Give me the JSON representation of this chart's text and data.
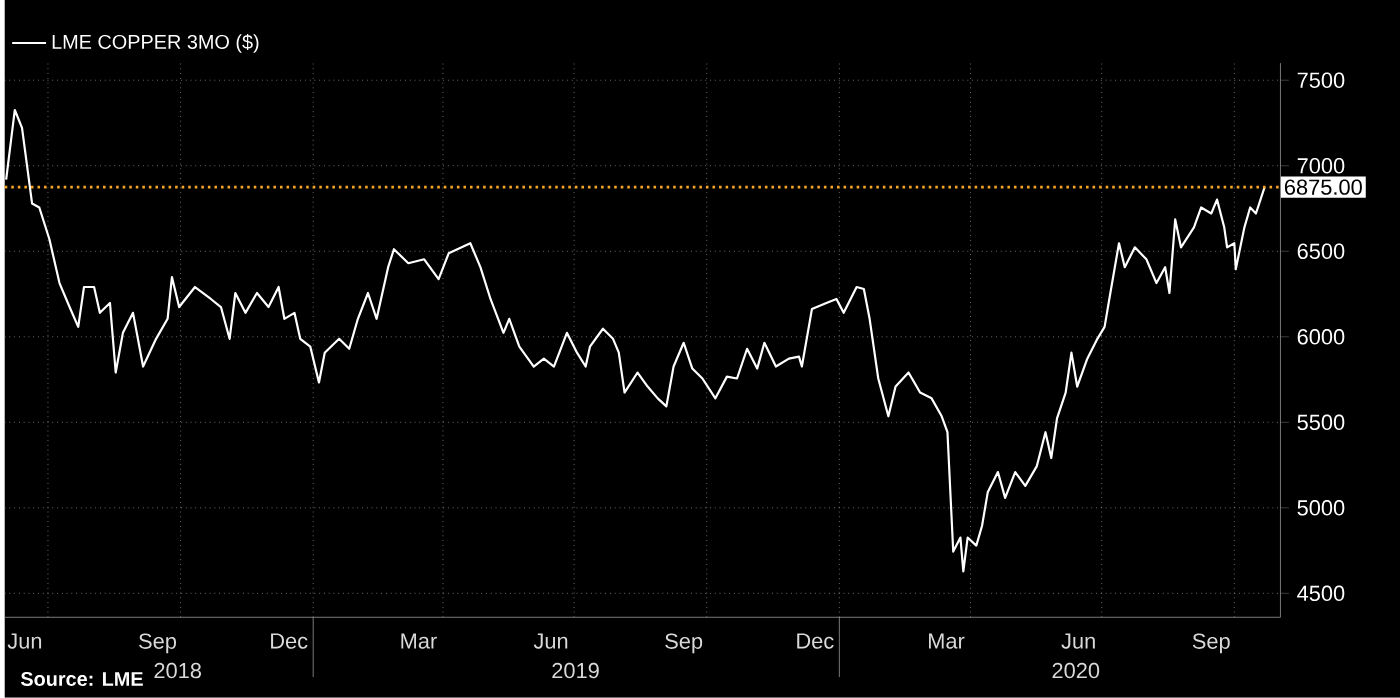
{
  "chart_data": {
    "type": "line",
    "legend": "top left",
    "grid": true,
    "annotations": [
      "Source: LME"
    ],
    "xlim": [
      "2018-06-01",
      "2020-11-02"
    ],
    "ylim": [
      4360,
      7600
    ],
    "yticks": [
      4500,
      5000,
      5500,
      6000,
      6500,
      7000,
      7500
    ],
    "xticks": [
      {
        "value": "2018-06-15",
        "label": "Jun"
      },
      {
        "value": "2018-09-15",
        "label": "Sep"
      },
      {
        "value": "2018-12-15",
        "label": "Dec"
      },
      {
        "value": "2019-03-15",
        "label": "Mar"
      },
      {
        "value": "2019-06-15",
        "label": "Jun"
      },
      {
        "value": "2019-09-15",
        "label": "Sep"
      },
      {
        "value": "2019-12-15",
        "label": "Dec"
      },
      {
        "value": "2020-03-15",
        "label": "Mar"
      },
      {
        "value": "2020-06-15",
        "label": "Jun"
      },
      {
        "value": "2020-09-15",
        "label": "Sep"
      },
      {
        "value": "2018-07-01",
        "label": null
      },
      {
        "value": "2018-10-01",
        "label": null
      },
      {
        "value": "2019-01-01",
        "label": null
      },
      {
        "value": "2019-04-01",
        "label": null
      },
      {
        "value": "2019-07-01",
        "label": null
      },
      {
        "value": "2019-10-01",
        "label": null
      },
      {
        "value": "2020-01-01",
        "label": null
      },
      {
        "value": "2020-04-01",
        "label": null
      },
      {
        "value": "2020-07-01",
        "label": null
      },
      {
        "value": "2020-10-01",
        "label": null
      }
    ],
    "x2lim": [
      "2018-06-01",
      "2020-11-02"
    ],
    "x2ticks": [
      {
        "value": "2018-09-29",
        "label": "2018"
      },
      {
        "value": "2019-07-02",
        "label": "2019"
      },
      {
        "value": "2020-06-13",
        "label": "2020"
      },
      {
        "value": "2019-01-01",
        "label": null
      },
      {
        "value": "2020-01-01",
        "label": null
      }
    ],
    "ref_lines": [
      {
        "axis": "y",
        "value": 6875,
        "label": "6875.00",
        "color": "#f5a623",
        "line_style": "dotted"
      }
    ],
    "x": [
      "2018-06-02",
      "2018-06-08",
      "2018-06-13",
      "2018-06-20",
      "2018-06-25",
      "2018-07-02",
      "2018-07-09",
      "2018-07-16",
      "2018-07-22",
      "2018-07-26",
      "2018-08-02",
      "2018-08-06",
      "2018-08-13",
      "2018-08-17",
      "2018-08-22",
      "2018-08-29",
      "2018-09-05",
      "2018-09-14",
      "2018-09-22",
      "2018-09-25",
      "2018-09-30",
      "2018-10-11",
      "2018-10-22",
      "2018-10-29",
      "2018-11-04",
      "2018-11-08",
      "2018-11-15",
      "2018-11-23",
      "2018-12-01",
      "2018-12-08",
      "2018-12-12",
      "2018-12-19",
      "2018-12-23",
      "2018-12-30",
      "2019-01-05",
      "2019-01-09",
      "2019-01-19",
      "2019-01-26",
      "2019-02-01",
      "2019-02-08",
      "2019-02-14",
      "2019-02-22",
      "2019-02-26",
      "2019-03-08",
      "2019-03-19",
      "2019-03-29",
      "2019-04-05",
      "2019-04-20",
      "2019-04-27",
      "2019-05-04",
      "2019-05-13",
      "2019-05-17",
      "2019-05-24",
      "2019-06-03",
      "2019-06-10",
      "2019-06-17",
      "2019-06-26",
      "2019-07-03",
      "2019-07-09",
      "2019-07-12",
      "2019-07-21",
      "2019-07-28",
      "2019-08-01",
      "2019-08-05",
      "2019-08-14",
      "2019-08-21",
      "2019-08-28",
      "2019-09-03",
      "2019-09-08",
      "2019-09-15",
      "2019-09-21",
      "2019-09-28",
      "2019-10-07",
      "2019-10-15",
      "2019-10-22",
      "2019-10-29",
      "2019-11-05",
      "2019-11-10",
      "2019-11-18",
      "2019-11-27",
      "2019-12-04",
      "2019-12-06",
      "2019-12-13",
      "2019-12-23",
      "2019-12-30",
      "2020-01-04",
      "2020-01-13",
      "2020-01-18",
      "2020-01-22",
      "2020-01-28",
      "2020-02-04",
      "2020-02-09",
      "2020-02-18",
      "2020-02-26",
      "2020-03-05",
      "2020-03-12",
      "2020-03-16",
      "2020-03-20",
      "2020-03-25",
      "2020-03-27",
      "2020-03-30",
      "2020-04-05",
      "2020-04-09",
      "2020-04-13",
      "2020-04-20",
      "2020-04-25",
      "2020-05-02",
      "2020-05-09",
      "2020-05-17",
      "2020-05-23",
      "2020-05-27",
      "2020-05-31",
      "2020-06-06",
      "2020-06-10",
      "2020-06-14",
      "2020-06-21",
      "2020-06-28",
      "2020-07-03",
      "2020-07-07",
      "2020-07-13",
      "2020-07-17",
      "2020-07-24",
      "2020-08-01",
      "2020-08-08",
      "2020-08-14",
      "2020-08-17",
      "2020-08-21",
      "2020-08-25",
      "2020-09-03",
      "2020-09-08",
      "2020-09-15",
      "2020-09-19",
      "2020-09-24",
      "2020-09-26",
      "2020-10-01",
      "2020-10-02",
      "2020-10-08",
      "2020-10-12",
      "2020-10-16",
      "2020-10-22"
    ],
    "series": [
      {
        "name": "LME COPPER   3MO ($)",
        "color": "#ffffff",
        "values": [
          6919,
          7326,
          7221,
          6779,
          6756,
          6570,
          6314,
          6174,
          6058,
          6291,
          6291,
          6140,
          6198,
          5791,
          6023,
          6140,
          5826,
          5988,
          6105,
          6349,
          6174,
          6291,
          6221,
          6174,
          5988,
          6256,
          6140,
          6256,
          6174,
          6291,
          6105,
          6140,
          5988,
          5942,
          5733,
          5907,
          5988,
          5930,
          6105,
          6256,
          6105,
          6407,
          6512,
          6430,
          6453,
          6337,
          6488,
          6547,
          6407,
          6221,
          6023,
          6105,
          5942,
          5826,
          5872,
          5826,
          6023,
          5907,
          5826,
          5942,
          6047,
          5988,
          5907,
          5674,
          5791,
          5709,
          5640,
          5593,
          5826,
          5965,
          5814,
          5756,
          5640,
          5767,
          5756,
          5930,
          5814,
          5965,
          5826,
          5872,
          5884,
          5826,
          6163,
          6198,
          6221,
          6140,
          6291,
          6279,
          6105,
          5756,
          5535,
          5709,
          5791,
          5674,
          5640,
          5535,
          5442,
          4744,
          4826,
          4628,
          4826,
          4779,
          4895,
          5093,
          5209,
          5058,
          5209,
          5128,
          5244,
          5442,
          5291,
          5523,
          5674,
          5907,
          5709,
          5872,
          5988,
          6058,
          6256,
          6547,
          6407,
          6523,
          6453,
          6314,
          6407,
          6256,
          6686,
          6523,
          6640,
          6756,
          6721,
          6802,
          6640,
          6523,
          6547,
          6395,
          6640,
          6756,
          6721,
          6875
        ]
      }
    ]
  }
}
